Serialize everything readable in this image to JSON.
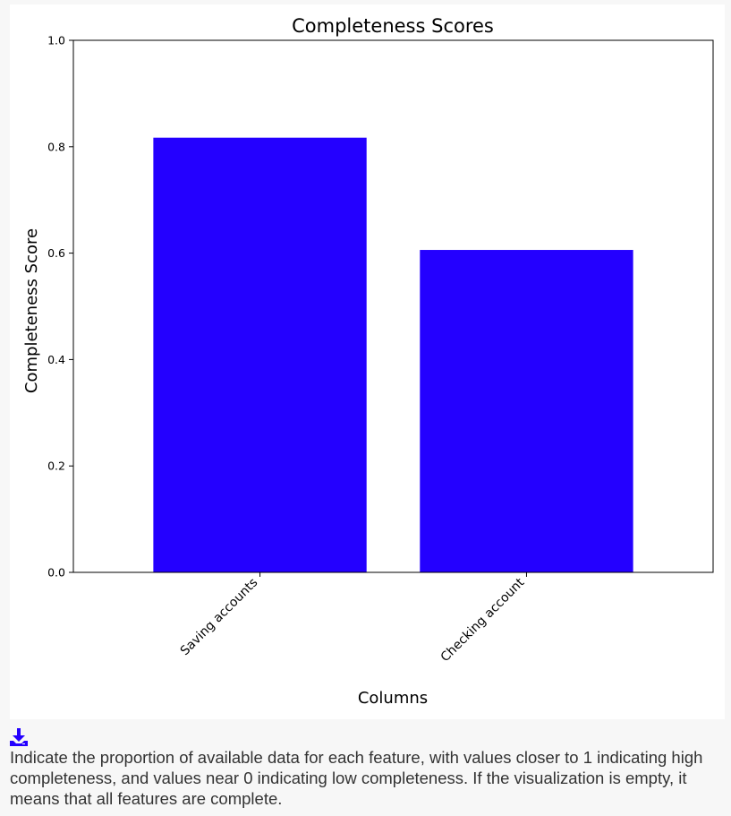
{
  "chart_data": {
    "type": "bar",
    "title": "Completeness Scores",
    "xlabel": "Columns",
    "ylabel": "Completeness Score",
    "categories": [
      "Saving accounts",
      "Checking account"
    ],
    "values": [
      0.817,
      0.606
    ],
    "ylim": [
      0,
      1.0
    ],
    "yticks": [
      "0.0",
      "0.2",
      "0.4",
      "0.6",
      "0.8",
      "1.0"
    ],
    "bar_color": "#2400ff",
    "grid": false
  },
  "download": {
    "icon": "download-icon"
  },
  "description": "Indicate the proportion of available data for each feature, with values closer to 1 indicating high completeness, and values near 0 indicating low completeness. If the visualization is empty, it means that all features are complete."
}
